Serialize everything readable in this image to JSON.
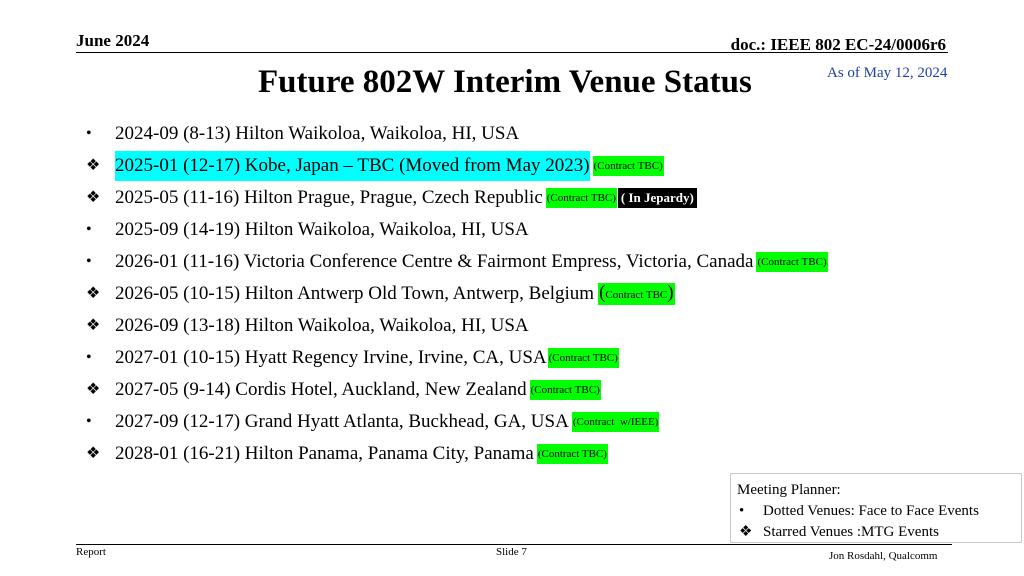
{
  "header": {
    "date": "June 2024",
    "doc": "doc.: IEEE 802 EC-24/0006r6"
  },
  "title": "Future 802W Interim Venue Status",
  "as_of": "As of May 12, 2024",
  "colors": {
    "cyan_highlight": "#00ffff",
    "green_tag": "#00ff00",
    "black_tag": "#000000",
    "as_of_text": "#1f3fa6"
  },
  "items": [
    {
      "marker": "•",
      "marker_icon": "bullet-icon",
      "text": "2024-09 (8-13) Hilton Waikoloa, Waikoloa, HI, USA"
    },
    {
      "marker": "❖",
      "marker_icon": "diamond-star-icon",
      "text": "2025-01 (12-17) Kobe, Japan – TBC (Moved from May 2023)",
      "tag": "(Contract TBC)"
    },
    {
      "marker": "❖",
      "marker_icon": "diamond-star-icon",
      "text": "2025-05 (11-16) Hilton Prague, Prague, Czech Republic",
      "tag": "(Contract TBC)",
      "tag2": "( In Jepardy)"
    },
    {
      "marker": "•",
      "marker_icon": "bullet-icon",
      "text": "2025-09 (14-19) Hilton Waikoloa, Waikoloa, HI, USA"
    },
    {
      "marker": "•",
      "marker_icon": "bullet-icon",
      "text": "2026-01 (11-16) Victoria Conference Centre & Fairmont Empress, Victoria, Canada",
      "tag": "(Contract TBC)"
    },
    {
      "marker": "❖",
      "marker_icon": "diamond-star-icon",
      "text": "2026-05 (10-15) Hilton Antwerp Old Town, Antwerp, Belgium",
      "tag_open": "(",
      "tag": "Contract TBC",
      "tag_close": ")"
    },
    {
      "marker": "❖",
      "marker_icon": "diamond-star-icon",
      "text": "2026-09 (13-18) Hilton Waikoloa, Waikoloa, HI, USA"
    },
    {
      "marker": "•",
      "marker_icon": "bullet-icon",
      "text": "2027-01 (10-15) Hyatt Regency Irvine, Irvine, CA, USA",
      "tag": "(Contract TBC)"
    },
    {
      "marker": "❖",
      "marker_icon": "diamond-star-icon",
      "text": "2027-05 (9-14) Cordis Hotel, Auckland, New Zealand",
      "tag": "(Contract TBC)"
    },
    {
      "marker": "•",
      "marker_icon": "bullet-icon",
      "text": "2027-09 (12-17) Grand Hyatt Atlanta, Buckhead, GA, USA",
      "tag": "(Contract  w/IEEE)"
    },
    {
      "marker": "❖",
      "marker_icon": "diamond-star-icon",
      "text": "2028-01 (16-21) Hilton Panama, Panama City, Panama",
      "tag": "(Contract TBC)"
    }
  ],
  "legend": {
    "title": "Meeting Planner:",
    "rows": [
      {
        "marker": "•",
        "text": "Dotted Venues: Face to Face Events"
      },
      {
        "marker": "❖",
        "text": "Starred Venues :MTG Events"
      }
    ]
  },
  "footer": {
    "left": "Report",
    "center": "Slide 7",
    "right": "Jon Rosdahl, Qualcomm"
  }
}
